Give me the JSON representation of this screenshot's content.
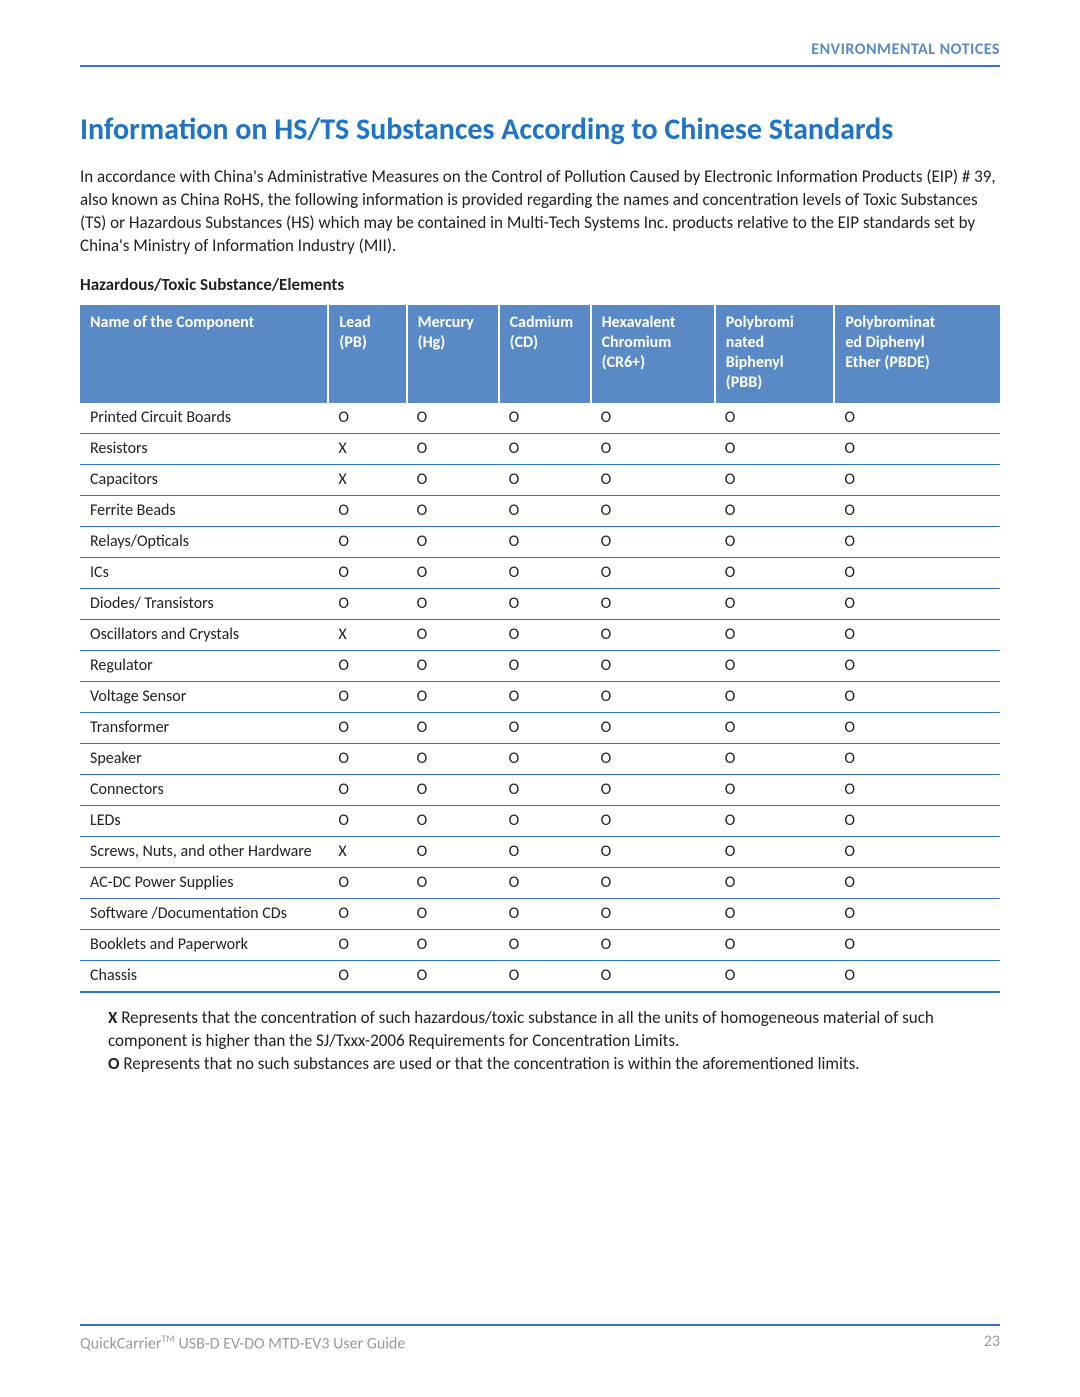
{
  "header": {
    "section_label": "ENVIRONMENTAL NOTICES"
  },
  "title": "Information on HS/TS Substances According to Chinese Standards",
  "intro": "In accordance with China's Administrative Measures on the Control of Pollution Caused by Electronic Information Products (EIP) # 39, also known as China RoHS, the following information is provided regarding the names and concentration levels of Toxic Substances (TS) or Hazardous Substances (HS) which may be contained in Multi-Tech Systems Inc. products relative to the EIP standards set by China's Ministry of Information Industry (MII).",
  "subheading": "Hazardous/Toxic Substance/Elements",
  "table": {
    "columns": [
      {
        "line1": "Name of the Component",
        "line2": ""
      },
      {
        "line1": "Lead",
        "line2": "(PB)"
      },
      {
        "line1": "Mercury",
        "line2": "(Hg)"
      },
      {
        "line1": "Cadmium",
        "line2": "(CD)"
      },
      {
        "line1": "Hexavalent",
        "line2": "Chromium",
        "line3": "(CR6+)"
      },
      {
        "line1": "Polybromi",
        "line2": "nated",
        "line3": "Biphenyl",
        "line4": "(PBB)"
      },
      {
        "line1": "Polybrominat",
        "line2": "ed Diphenyl",
        "line3": "Ether (PBDE)"
      }
    ],
    "rows": [
      [
        "Printed Circuit Boards",
        "O",
        "O",
        "O",
        "O",
        "O",
        "O"
      ],
      [
        "Resistors",
        "X",
        "O",
        "O",
        "O",
        "O",
        "O"
      ],
      [
        "Capacitors",
        "X",
        "O",
        "O",
        "O",
        "O",
        "O"
      ],
      [
        "Ferrite Beads",
        "O",
        "O",
        "O",
        "O",
        "O",
        "O"
      ],
      [
        "Relays/Opticals",
        "O",
        "O",
        "O",
        "O",
        "O",
        "O"
      ],
      [
        "ICs",
        "O",
        "O",
        "O",
        "O",
        "O",
        "O"
      ],
      [
        "Diodes/ Transistors",
        "O",
        "O",
        "O",
        "O",
        "O",
        "O"
      ],
      [
        "Oscillators and Crystals",
        "X",
        "O",
        "O",
        "O",
        "O",
        "O"
      ],
      [
        "Regulator",
        "O",
        "O",
        "O",
        "O",
        "O",
        "O"
      ],
      [
        "Voltage Sensor",
        "O",
        "O",
        "O",
        "O",
        "O",
        "O"
      ],
      [
        "Transformer",
        "O",
        "O",
        "O",
        "O",
        "O",
        "O"
      ],
      [
        "Speaker",
        "O",
        "O",
        "O",
        "O",
        "O",
        "O"
      ],
      [
        "Connectors",
        "O",
        "O",
        "O",
        "O",
        "O",
        "O"
      ],
      [
        "LEDs",
        "O",
        "O",
        "O",
        "O",
        "O",
        "O"
      ],
      [
        "Screws, Nuts, and other Hardware",
        "X",
        "O",
        "O",
        "O",
        "O",
        "O"
      ],
      [
        "AC-DC Power Supplies",
        "O",
        "O",
        "O",
        "O",
        "O",
        "O"
      ],
      [
        "Software /Documentation CDs",
        "O",
        "O",
        "O",
        "O",
        "O",
        "O"
      ],
      [
        "Booklets and Paperwork",
        "O",
        "O",
        "O",
        "O",
        "O",
        "O"
      ],
      [
        "Chassis",
        "O",
        "O",
        "O",
        "O",
        "O",
        "O"
      ]
    ]
  },
  "legend": {
    "x_label": "X",
    "x_text": " Represents that the concentration of such hazardous/toxic substance in all the units of homogeneous material of such component is higher than the SJ/Txxx-2006 Requirements for Concentration Limits.",
    "o_label": "O",
    "o_text": " Represents that no such substances are used or that the concentration is within the aforementioned limits."
  },
  "footer": {
    "product_prefix": "QuickCarrier",
    "tm": "TM",
    "product_suffix": " USB-D EV-DO MTD-EV3 User Guide",
    "page_number": "23"
  },
  "colors": {
    "accent": "#1f74c8",
    "table_header_bg": "#5a8ac6",
    "rule": "#2f75c5",
    "muted": "#9a9a9a"
  }
}
